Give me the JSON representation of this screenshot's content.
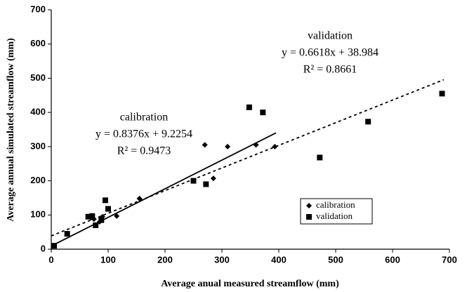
{
  "chart_data": {
    "type": "scatter",
    "xlabel": "Average anual measured streamflow (mm)",
    "ylabel": "Average annual simulated streamflow (mm)",
    "xlim": [
      0,
      700
    ],
    "ylim": [
      0,
      700
    ],
    "xticks": [
      0,
      100,
      200,
      300,
      400,
      500,
      600,
      700
    ],
    "yticks": [
      0,
      100,
      200,
      300,
      400,
      500,
      600,
      700
    ],
    "legend": "lower-right",
    "series": [
      {
        "name": "calibration",
        "color": "#000000",
        "marker": "diamond",
        "x": [
          5,
          70,
          75,
          85,
          90,
          115,
          155,
          270,
          285,
          310,
          360,
          393
        ],
        "values": [
          10,
          92,
          88,
          80,
          95,
          97,
          148,
          305,
          207,
          300,
          305,
          300
        ],
        "trend": {
          "equation": "y = 0.8376x + 9.2254",
          "r2": "R² = 0.9473",
          "slope": 0.8376,
          "intercept": 9.2254,
          "xrange": [
            5,
            395
          ],
          "dash": false
        }
      },
      {
        "name": "validation",
        "color": "#000000",
        "marker": "square",
        "x": [
          5,
          28,
          65,
          72,
          78,
          88,
          95,
          100,
          250,
          272,
          348,
          372,
          472,
          557,
          687
        ],
        "values": [
          10,
          45,
          95,
          97,
          70,
          85,
          143,
          118,
          200,
          190,
          415,
          400,
          268,
          373,
          455
        ],
        "trend": {
          "equation": "y = 0.6618x + 38.984",
          "r2": "R² = 0.8661",
          "slope": 0.6618,
          "intercept": 38.984,
          "xrange": [
            0,
            690
          ],
          "dash": true
        }
      }
    ]
  }
}
